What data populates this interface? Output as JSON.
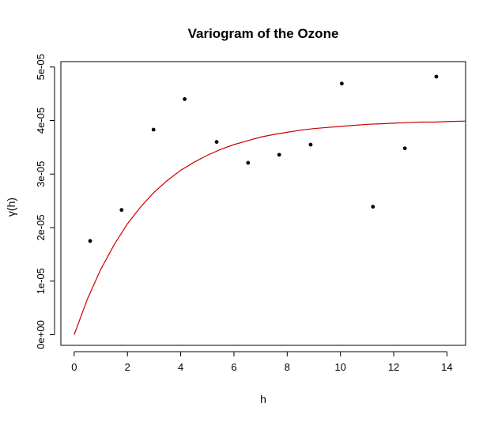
{
  "chart_data": {
    "type": "scatter",
    "title": "Variogram of the Ozone",
    "xlabel": "h",
    "ylabel": "γ(h)",
    "xlim": [
      -0.5,
      14.7
    ],
    "ylim": [
      -2e-06,
      5.1e-05
    ],
    "x_ticks": [
      0,
      2,
      4,
      6,
      8,
      10,
      12,
      14
    ],
    "x_tick_labels": [
      "0",
      "2",
      "4",
      "6",
      "8",
      "10",
      "12",
      "14"
    ],
    "y_ticks": [
      0,
      1e-05,
      2e-05,
      3e-05,
      4e-05,
      5e-05
    ],
    "y_tick_labels": [
      "0e+00",
      "1e-05",
      "2e-05",
      "3e-05",
      "4e-05",
      "5e-05"
    ],
    "grid": false,
    "points": {
      "x": [
        0.6,
        1.78,
        2.98,
        4.15,
        5.35,
        6.53,
        7.7,
        8.88,
        10.05,
        11.22,
        12.42,
        13.6
      ],
      "y": [
        1.75e-05,
        2.33e-05,
        3.83e-05,
        4.4e-05,
        3.6e-05,
        3.21e-05,
        3.36e-05,
        3.55e-05,
        4.69e-05,
        2.39e-05,
        3.48e-05,
        4.82e-05
      ],
      "color": "#000000"
    },
    "fitted_curve": {
      "x": [
        0,
        0.5,
        1,
        1.5,
        2,
        2.5,
        3,
        3.5,
        4,
        4.5,
        5,
        5.5,
        6,
        6.5,
        7,
        7.5,
        8,
        8.5,
        9,
        9.5,
        10,
        10.5,
        11,
        11.5,
        12,
        12.5,
        13,
        13.5,
        14,
        14.7
      ],
      "y": [
        0,
        6.7e-06,
        1.22e-05,
        1.68e-05,
        2.07e-05,
        2.39e-05,
        2.66e-05,
        2.88e-05,
        3.07e-05,
        3.22e-05,
        3.35e-05,
        3.46e-05,
        3.55e-05,
        3.62e-05,
        3.69e-05,
        3.74e-05,
        3.78e-05,
        3.82e-05,
        3.85e-05,
        3.87e-05,
        3.89e-05,
        3.91e-05,
        3.93e-05,
        3.94e-05,
        3.95e-05,
        3.96e-05,
        3.97e-05,
        3.97e-05,
        3.98e-05,
        3.99e-05
      ],
      "color": "#cc0000"
    }
  }
}
